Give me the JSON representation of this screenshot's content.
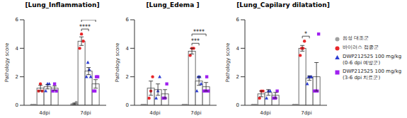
{
  "chart_data": [
    {
      "type": "bar",
      "title": "[Lung_Inflammation]",
      "y_label": "Pathology score",
      "categories": [
        "4dpi",
        "7dpi"
      ],
      "ylim": [
        0,
        6
      ],
      "yticks": [
        0,
        2,
        4,
        6
      ],
      "legend": "right",
      "series": [
        {
          "name": "음성 대조군",
          "color": "#a0a0a0",
          "marker": "circle",
          "values": [
            0,
            0.1
          ],
          "errors": [
            0,
            0.05
          ],
          "points": [
            [
              0,
              0,
              0
            ],
            [
              0,
              0.1,
              0.2
            ]
          ]
        },
        {
          "name": "바이러스 접종군",
          "color": "#e8262a",
          "marker": "circle",
          "values": [
            1.2,
            4.5
          ],
          "errors": [
            0.2,
            0.3
          ],
          "points": [
            [
              1,
              1.5,
              1
            ],
            [
              4,
              5,
              4.5
            ]
          ]
        },
        {
          "name": "DWP212525 100 mg/kg (0-6 dpi 예방군)",
          "color": "#2b3bd1",
          "marker": "triangle",
          "values": [
            1.3,
            2.4
          ],
          "errors": [
            0.15,
            0.25
          ],
          "points": [
            [
              1,
              1.5,
              1.5
            ],
            [
              2,
              3,
              2.5,
              2
            ]
          ]
        },
        {
          "name": "DWP212525 100 mg/kg (3-6 dpi 치료군)",
          "color": "#a020f0",
          "marker": "square",
          "values": [
            1.2,
            1.5
          ],
          "errors": [
            0.15,
            0.3
          ],
          "points": [
            [
              1,
              1.5,
              1
            ],
            [
              1,
              1,
              2,
              2
            ]
          ]
        }
      ],
      "significance": [
        {
          "category": "7dpi",
          "from": "바이러스 접종군",
          "to": "DWP212525 100 mg/kg (0-6 dpi 예방군)",
          "label": "****"
        },
        {
          "category": "7dpi",
          "from": "바이러스 접종군",
          "to": "DWP212525 100 mg/kg (3-6 dpi 치료군)",
          "label": "****"
        }
      ]
    },
    {
      "type": "bar",
      "title": "[Lung_Edema ]",
      "y_label": "Pathology score",
      "categories": [
        "4dpi",
        "7dpi"
      ],
      "ylim": [
        0,
        6
      ],
      "yticks": [
        0,
        2,
        4,
        6
      ],
      "legend": "right",
      "series": [
        {
          "name": "음성 대조군",
          "color": "#a0a0a0",
          "marker": "circle",
          "values": [
            0,
            0
          ],
          "errors": [
            0,
            0
          ],
          "points": [
            [
              0,
              0,
              0
            ],
            [
              0,
              0,
              0
            ]
          ]
        },
        {
          "name": "바이러스 접종군",
          "color": "#e8262a",
          "marker": "circle",
          "values": [
            1.2,
            3.8
          ],
          "errors": [
            0.5,
            0.2
          ],
          "points": [
            [
              0.5,
              1,
              2
            ],
            [
              3.5,
              4,
              4
            ]
          ]
        },
        {
          "name": "DWP212525 100 mg/kg (0-6 dpi 예방군)",
          "color": "#2b3bd1",
          "marker": "triangle",
          "values": [
            1.1,
            1.7
          ],
          "errors": [
            0.4,
            0.3
          ],
          "points": [
            [
              0.5,
              1,
              2
            ],
            [
              1,
              2,
              2,
              1.5
            ]
          ]
        },
        {
          "name": "DWP212525 100 mg/kg (3-6 dpi 치료군)",
          "color": "#a020f0",
          "marker": "square",
          "values": [
            0.8,
            1.3
          ],
          "errors": [
            0.3,
            0.3
          ],
          "points": [
            [
              0.5,
              0.5,
              1.5
            ],
            [
              1,
              1,
              2,
              1
            ]
          ]
        }
      ],
      "significance": [
        {
          "category": "7dpi",
          "from": "바이러스 접종군",
          "to": "DWP212525 100 mg/kg (0-6 dpi 예방군)",
          "label": "***"
        },
        {
          "category": "7dpi",
          "from": "바이러스 접종군",
          "to": "DWP212525 100 mg/kg (3-6 dpi 치료군)",
          "label": "****"
        }
      ]
    },
    {
      "type": "bar",
      "title": "[Lung_Capilary dilatation]",
      "y_label": "Pathology score",
      "categories": [
        "4dpi",
        "7dpi"
      ],
      "ylim": [
        0,
        6
      ],
      "yticks": [
        0,
        2,
        4,
        6
      ],
      "legend": "right",
      "series": [
        {
          "name": "음성 대조군",
          "color": "#a0a0a0",
          "marker": "circle",
          "values": [
            0,
            0
          ],
          "errors": [
            0,
            0
          ],
          "points": [
            [
              0,
              0,
              0
            ],
            [
              0,
              0,
              0
            ]
          ]
        },
        {
          "name": "바이러스 접종군",
          "color": "#e8262a",
          "marker": "circle",
          "values": [
            0.8,
            4.0
          ],
          "errors": [
            0.2,
            0.2
          ],
          "points": [
            [
              0.5,
              1,
              1
            ],
            [
              3.5,
              4,
              4,
              4.5
            ]
          ]
        },
        {
          "name": "DWP212525 100 mg/kg (0-6 dpi 예방군)",
          "color": "#2b3bd1",
          "marker": "triangle",
          "values": [
            0.9,
            1.9
          ],
          "errors": [
            0.2,
            0.15
          ],
          "points": [
            [
              0.5,
              1,
              1
            ],
            [
              1.5,
              2,
              2,
              2
            ]
          ]
        },
        {
          "name": "DWP212525 100 mg/kg (3-6 dpi 치료군)",
          "color": "#a020f0",
          "marker": "square",
          "values": [
            0.7,
            2.0
          ],
          "errors": [
            0.2,
            1.0
          ],
          "points": [
            [
              0.5,
              0.5,
              1
            ],
            [
              1,
              1,
              1,
              5
            ]
          ]
        }
      ],
      "significance": [
        {
          "category": "7dpi",
          "from": "바이러스 접종군",
          "to": "DWP212525 100 mg/kg (0-6 dpi 예방군)",
          "label": "*"
        }
      ]
    }
  ]
}
